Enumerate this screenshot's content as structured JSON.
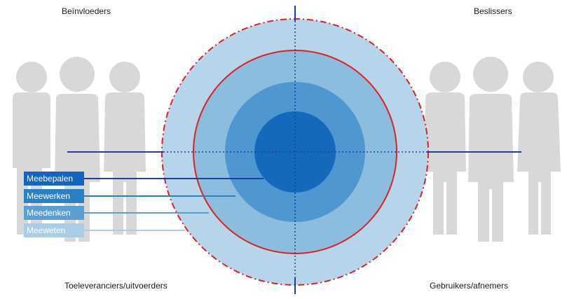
{
  "quadrants": {
    "top_left": "Beïnvloeders",
    "top_right": "Beslissers",
    "bottom_left": "Toeleveranciers/uitvoerders",
    "bottom_right": "Gebruikers/afnemers"
  },
  "levels": [
    {
      "label": "Meebepalen",
      "color": "#1565c0"
    },
    {
      "label": "Meewerken",
      "color": "#2a80c4"
    },
    {
      "label": "Meedenken",
      "color": "#5b9fd2"
    },
    {
      "label": "Meeweten",
      "color": "#a9cde6"
    }
  ],
  "colors": {
    "axis": "#1f3fa0",
    "boundary": "#e02020",
    "figures": "#cfcfcf"
  }
}
